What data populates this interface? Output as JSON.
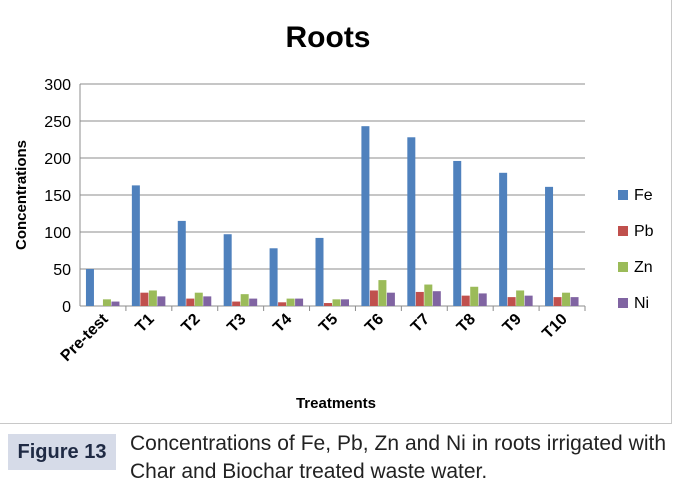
{
  "chart_data": {
    "type": "bar",
    "title": "Roots",
    "xlabel": "Treatments",
    "ylabel": "Concentrations",
    "categories": [
      "Pre-test",
      "T1",
      "T2",
      "T3",
      "T4",
      "T5",
      "T6",
      "T7",
      "T8",
      "T9",
      "T10"
    ],
    "ylim": [
      0,
      300
    ],
    "yticks": [
      "0",
      "50",
      "100",
      "150",
      "200",
      "250",
      "300"
    ],
    "grid": true,
    "legend": "right",
    "series": [
      {
        "name": "Fe",
        "color": "#4f81bd",
        "values": [
          50,
          163,
          115,
          97,
          78,
          92,
          243,
          228,
          196,
          180,
          161
        ]
      },
      {
        "name": "Pb",
        "color": "#c0504d",
        "values": [
          0,
          18,
          10,
          6,
          5,
          4,
          21,
          19,
          14,
          12,
          12
        ]
      },
      {
        "name": "Zn",
        "color": "#9bbb59",
        "values": [
          9,
          21,
          18,
          16,
          10,
          9,
          35,
          29,
          26,
          21,
          18
        ]
      },
      {
        "name": "Ni",
        "color": "#8064a2",
        "values": [
          6,
          13,
          13,
          10,
          10,
          9,
          18,
          20,
          17,
          14,
          12
        ]
      }
    ]
  },
  "caption": {
    "label": "Figure 13",
    "text": "Concentrations of Fe, Pb, Zn and Ni in roots irrigated with Char and Biochar treated waste water."
  }
}
